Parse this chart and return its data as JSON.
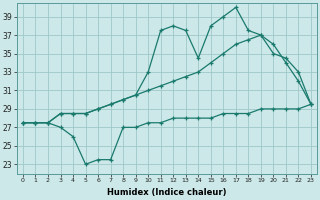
{
  "xlabel": "Humidex (Indice chaleur)",
  "x_values": [
    0,
    1,
    2,
    3,
    4,
    5,
    6,
    7,
    8,
    9,
    10,
    11,
    12,
    13,
    14,
    15,
    16,
    17,
    18,
    19,
    20,
    21,
    22,
    23
  ],
  "line1": [
    27.5,
    27.5,
    27.5,
    27.0,
    26.0,
    23.0,
    23.5,
    23.5,
    27.0,
    27.0,
    27.5,
    27.5,
    28.0,
    28.0,
    28.0,
    28.0,
    28.5,
    28.5,
    28.5,
    29.0,
    29.0,
    29.0,
    29.0,
    29.5
  ],
  "line2": [
    27.5,
    27.5,
    27.5,
    28.5,
    28.5,
    28.5,
    29.0,
    29.5,
    30.0,
    30.5,
    31.0,
    31.5,
    32.0,
    32.5,
    33.0,
    34.0,
    35.0,
    36.0,
    36.5,
    37.0,
    35.0,
    34.5,
    33.0,
    29.5
  ],
  "line3": [
    27.5,
    27.5,
    27.5,
    28.5,
    28.5,
    28.5,
    29.0,
    29.5,
    30.0,
    30.5,
    33.0,
    37.5,
    38.0,
    37.5,
    34.5,
    38.0,
    39.0,
    40.0,
    37.5,
    37.0,
    36.0,
    34.0,
    32.0,
    29.5
  ],
  "line_color": "#1a7a6e",
  "bg_color": "#cce8e8",
  "grid_color": "#9fc8c8",
  "xlim": [
    -0.5,
    23.5
  ],
  "ylim": [
    22,
    40.5
  ],
  "yticks": [
    23,
    25,
    27,
    29,
    31,
    33,
    35,
    37,
    39
  ],
  "xticks": [
    0,
    1,
    2,
    3,
    4,
    5,
    6,
    7,
    8,
    9,
    10,
    11,
    12,
    13,
    14,
    15,
    16,
    17,
    18,
    19,
    20,
    21,
    22,
    23
  ]
}
